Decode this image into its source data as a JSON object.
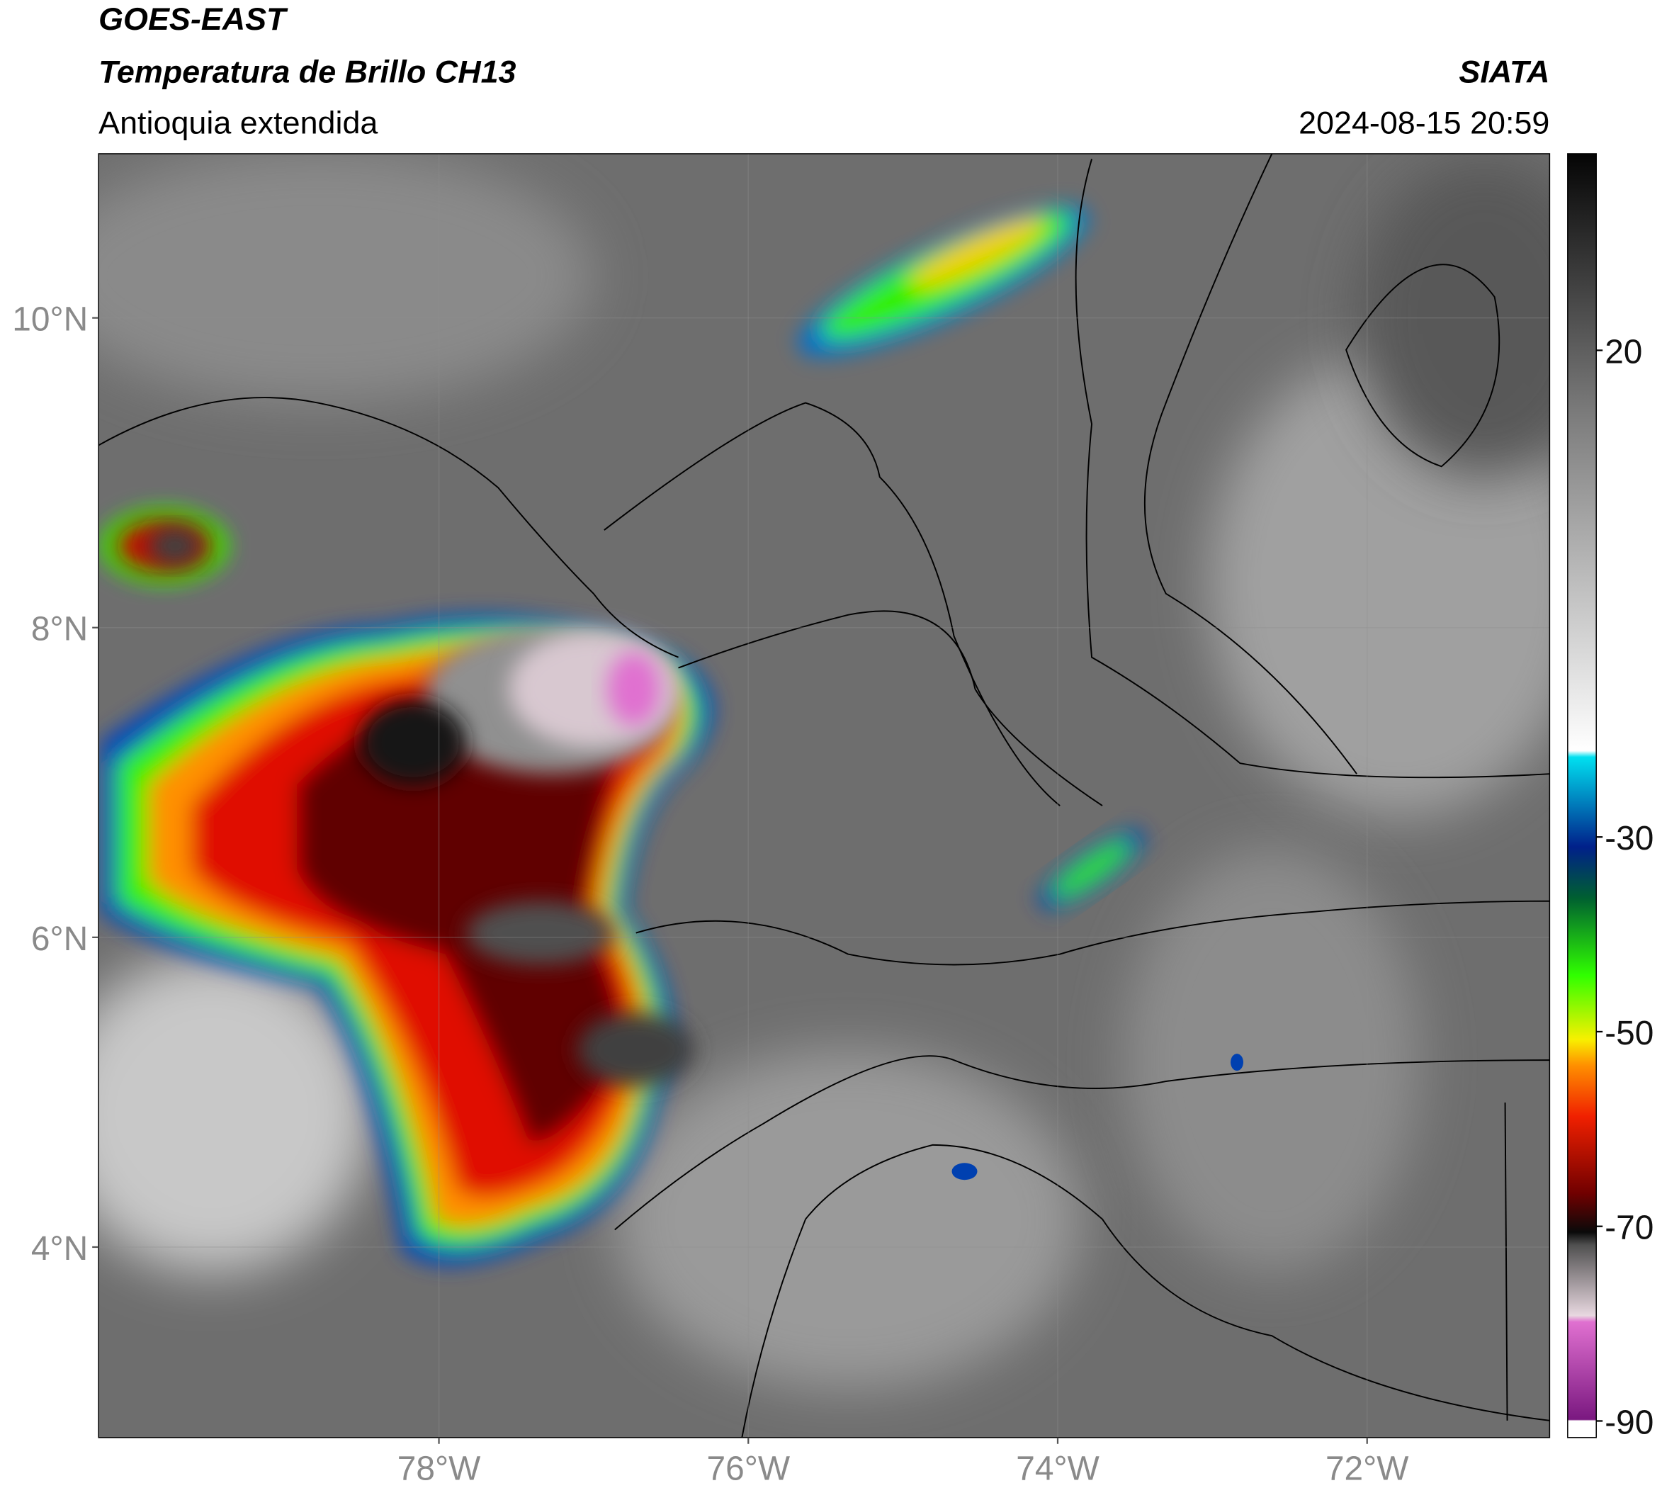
{
  "header": {
    "title": "GOES-EAST",
    "subtitle": "Temperatura de Brillo CH13",
    "region": "Antioquia extendida",
    "source": "SIATA",
    "datetime": "2024-08-15 20:59"
  },
  "map": {
    "xlim": [
      -80.2,
      -70.82
    ],
    "ylim": [
      2.77,
      11.06
    ],
    "xticks": [
      {
        "value": -78,
        "label": "78°W"
      },
      {
        "value": -76,
        "label": "76°W"
      },
      {
        "value": -74,
        "label": "74°W"
      },
      {
        "value": -72,
        "label": "72°W"
      }
    ],
    "yticks": [
      {
        "value": 4,
        "label": "4°N"
      },
      {
        "value": 6,
        "label": "6°N"
      },
      {
        "value": 8,
        "label": "8°N"
      },
      {
        "value": 10,
        "label": "10°N"
      }
    ]
  },
  "colorbar": {
    "lim": [
      -91.7,
      40.2
    ],
    "ticks": [
      -90,
      -70,
      -50,
      -30,
      20
    ]
  }
}
